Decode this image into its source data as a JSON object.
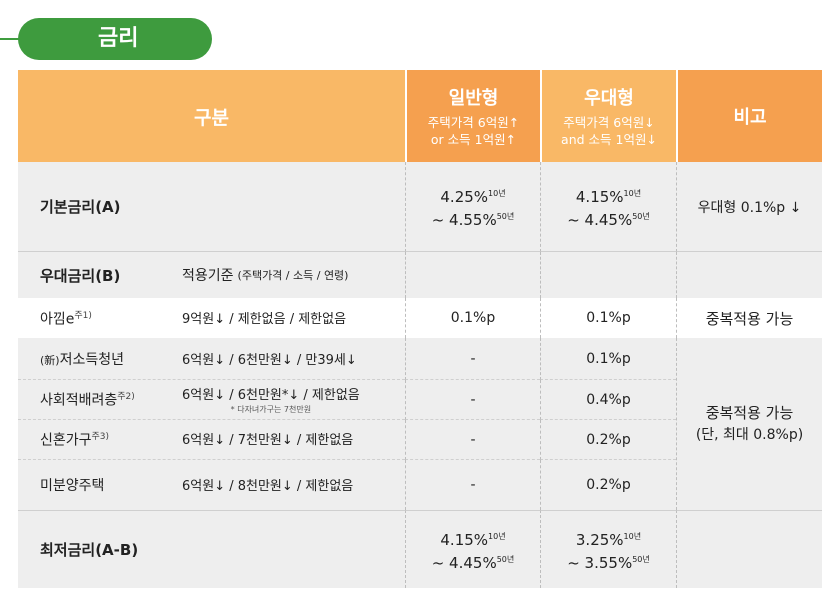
{
  "title": "금리",
  "header": {
    "gubun": "구분",
    "general": {
      "name": "일반형",
      "l1": "주택가격 6억원↑",
      "l2": "or 소득 1억원↑"
    },
    "preferential": {
      "name": "우대형",
      "l1": "주택가격 6억원↓",
      "l2": "and 소득 1억원↓"
    },
    "note": "비고"
  },
  "base": {
    "label": "기본금리(A)",
    "general": {
      "line1": "4.25%",
      "sup1": "10년",
      "line2": "~ 4.55%",
      "sup2": "50년"
    },
    "preferential": {
      "line1": "4.15%",
      "sup1": "10년",
      "line2": "~ 4.45%",
      "sup2": "50년"
    },
    "note": "우대형 0.1%p ↓"
  },
  "pref": {
    "label": "우대금리(B)",
    "criteria_label": "적용기준",
    "criteria_detail": "(주택가격 / 소득 / 연령)"
  },
  "rows": [
    {
      "name": "아낌e",
      "sup": "주1)",
      "criteria": "9억원↓ / 제한없음 / 제한없음",
      "general": "0.1%p",
      "preferential": "0.1%p"
    },
    {
      "name_prefix": "(新)",
      "name": "저소득청년",
      "criteria": "6억원↓ / 6천만원↓ / 만39세↓",
      "general": "-",
      "preferential": "0.1%p"
    },
    {
      "name": "사회적배려층",
      "sup": "주2)",
      "criteria": "6억원↓ / 6천만원*↓ / 제한없음",
      "criteria_note": "* 다자녀가구는 7천만원",
      "general": "-",
      "preferential": "0.4%p"
    },
    {
      "name": "신혼가구",
      "sup": "주3)",
      "criteria": "6억원↓ / 7천만원↓ / 제한없음",
      "general": "-",
      "preferential": "0.2%p"
    },
    {
      "name": "미분양주택",
      "criteria": "6억원↓ / 8천만원↓ / 제한없음",
      "general": "-",
      "preferential": "0.2%p"
    }
  ],
  "notes": {
    "dup1": "중복적용 가능",
    "dup2_l1": "중복적용 가능",
    "dup2_l2": "(단, 최대 0.8%p)"
  },
  "lowest": {
    "label": "최저금리(A-B)",
    "general": {
      "line1": "4.15%",
      "sup1": "10년",
      "line2": "~ 4.45%",
      "sup2": "50년"
    },
    "preferential": {
      "line1": "3.25%",
      "sup1": "10년",
      "line2": "~ 3.55%",
      "sup2": "50년"
    }
  }
}
